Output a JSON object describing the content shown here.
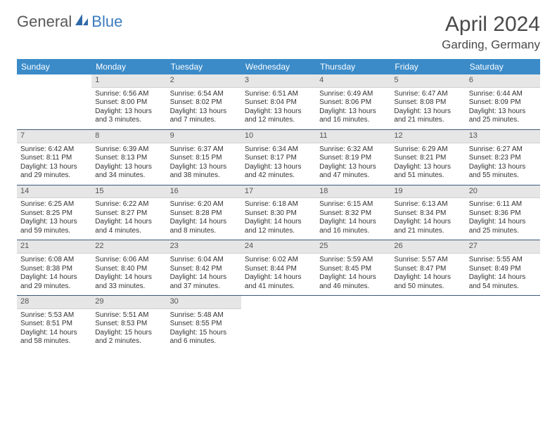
{
  "logo": {
    "text1": "General",
    "text2": "Blue"
  },
  "title": "April 2024",
  "location": "Garding, Germany",
  "colors": {
    "header_bg": "#3b8bc9",
    "header_fg": "#ffffff",
    "daynum_bg": "#e6e6e6",
    "row_border": "#3b5a7a",
    "logo_accent": "#3a7bbf"
  },
  "weekdays": [
    "Sunday",
    "Monday",
    "Tuesday",
    "Wednesday",
    "Thursday",
    "Friday",
    "Saturday"
  ],
  "weeks": [
    [
      {
        "n": "",
        "l1": "",
        "l2": "",
        "l3": "",
        "l4": "",
        "empty": true
      },
      {
        "n": "1",
        "l1": "Sunrise: 6:56 AM",
        "l2": "Sunset: 8:00 PM",
        "l3": "Daylight: 13 hours",
        "l4": "and 3 minutes."
      },
      {
        "n": "2",
        "l1": "Sunrise: 6:54 AM",
        "l2": "Sunset: 8:02 PM",
        "l3": "Daylight: 13 hours",
        "l4": "and 7 minutes."
      },
      {
        "n": "3",
        "l1": "Sunrise: 6:51 AM",
        "l2": "Sunset: 8:04 PM",
        "l3": "Daylight: 13 hours",
        "l4": "and 12 minutes."
      },
      {
        "n": "4",
        "l1": "Sunrise: 6:49 AM",
        "l2": "Sunset: 8:06 PM",
        "l3": "Daylight: 13 hours",
        "l4": "and 16 minutes."
      },
      {
        "n": "5",
        "l1": "Sunrise: 6:47 AM",
        "l2": "Sunset: 8:08 PM",
        "l3": "Daylight: 13 hours",
        "l4": "and 21 minutes."
      },
      {
        "n": "6",
        "l1": "Sunrise: 6:44 AM",
        "l2": "Sunset: 8:09 PM",
        "l3": "Daylight: 13 hours",
        "l4": "and 25 minutes."
      }
    ],
    [
      {
        "n": "7",
        "l1": "Sunrise: 6:42 AM",
        "l2": "Sunset: 8:11 PM",
        "l3": "Daylight: 13 hours",
        "l4": "and 29 minutes."
      },
      {
        "n": "8",
        "l1": "Sunrise: 6:39 AM",
        "l2": "Sunset: 8:13 PM",
        "l3": "Daylight: 13 hours",
        "l4": "and 34 minutes."
      },
      {
        "n": "9",
        "l1": "Sunrise: 6:37 AM",
        "l2": "Sunset: 8:15 PM",
        "l3": "Daylight: 13 hours",
        "l4": "and 38 minutes."
      },
      {
        "n": "10",
        "l1": "Sunrise: 6:34 AM",
        "l2": "Sunset: 8:17 PM",
        "l3": "Daylight: 13 hours",
        "l4": "and 42 minutes."
      },
      {
        "n": "11",
        "l1": "Sunrise: 6:32 AM",
        "l2": "Sunset: 8:19 PM",
        "l3": "Daylight: 13 hours",
        "l4": "and 47 minutes."
      },
      {
        "n": "12",
        "l1": "Sunrise: 6:29 AM",
        "l2": "Sunset: 8:21 PM",
        "l3": "Daylight: 13 hours",
        "l4": "and 51 minutes."
      },
      {
        "n": "13",
        "l1": "Sunrise: 6:27 AM",
        "l2": "Sunset: 8:23 PM",
        "l3": "Daylight: 13 hours",
        "l4": "and 55 minutes."
      }
    ],
    [
      {
        "n": "14",
        "l1": "Sunrise: 6:25 AM",
        "l2": "Sunset: 8:25 PM",
        "l3": "Daylight: 13 hours",
        "l4": "and 59 minutes."
      },
      {
        "n": "15",
        "l1": "Sunrise: 6:22 AM",
        "l2": "Sunset: 8:27 PM",
        "l3": "Daylight: 14 hours",
        "l4": "and 4 minutes."
      },
      {
        "n": "16",
        "l1": "Sunrise: 6:20 AM",
        "l2": "Sunset: 8:28 PM",
        "l3": "Daylight: 14 hours",
        "l4": "and 8 minutes."
      },
      {
        "n": "17",
        "l1": "Sunrise: 6:18 AM",
        "l2": "Sunset: 8:30 PM",
        "l3": "Daylight: 14 hours",
        "l4": "and 12 minutes."
      },
      {
        "n": "18",
        "l1": "Sunrise: 6:15 AM",
        "l2": "Sunset: 8:32 PM",
        "l3": "Daylight: 14 hours",
        "l4": "and 16 minutes."
      },
      {
        "n": "19",
        "l1": "Sunrise: 6:13 AM",
        "l2": "Sunset: 8:34 PM",
        "l3": "Daylight: 14 hours",
        "l4": "and 21 minutes."
      },
      {
        "n": "20",
        "l1": "Sunrise: 6:11 AM",
        "l2": "Sunset: 8:36 PM",
        "l3": "Daylight: 14 hours",
        "l4": "and 25 minutes."
      }
    ],
    [
      {
        "n": "21",
        "l1": "Sunrise: 6:08 AM",
        "l2": "Sunset: 8:38 PM",
        "l3": "Daylight: 14 hours",
        "l4": "and 29 minutes."
      },
      {
        "n": "22",
        "l1": "Sunrise: 6:06 AM",
        "l2": "Sunset: 8:40 PM",
        "l3": "Daylight: 14 hours",
        "l4": "and 33 minutes."
      },
      {
        "n": "23",
        "l1": "Sunrise: 6:04 AM",
        "l2": "Sunset: 8:42 PM",
        "l3": "Daylight: 14 hours",
        "l4": "and 37 minutes."
      },
      {
        "n": "24",
        "l1": "Sunrise: 6:02 AM",
        "l2": "Sunset: 8:44 PM",
        "l3": "Daylight: 14 hours",
        "l4": "and 41 minutes."
      },
      {
        "n": "25",
        "l1": "Sunrise: 5:59 AM",
        "l2": "Sunset: 8:45 PM",
        "l3": "Daylight: 14 hours",
        "l4": "and 46 minutes."
      },
      {
        "n": "26",
        "l1": "Sunrise: 5:57 AM",
        "l2": "Sunset: 8:47 PM",
        "l3": "Daylight: 14 hours",
        "l4": "and 50 minutes."
      },
      {
        "n": "27",
        "l1": "Sunrise: 5:55 AM",
        "l2": "Sunset: 8:49 PM",
        "l3": "Daylight: 14 hours",
        "l4": "and 54 minutes."
      }
    ],
    [
      {
        "n": "28",
        "l1": "Sunrise: 5:53 AM",
        "l2": "Sunset: 8:51 PM",
        "l3": "Daylight: 14 hours",
        "l4": "and 58 minutes."
      },
      {
        "n": "29",
        "l1": "Sunrise: 5:51 AM",
        "l2": "Sunset: 8:53 PM",
        "l3": "Daylight: 15 hours",
        "l4": "and 2 minutes."
      },
      {
        "n": "30",
        "l1": "Sunrise: 5:48 AM",
        "l2": "Sunset: 8:55 PM",
        "l3": "Daylight: 15 hours",
        "l4": "and 6 minutes."
      },
      {
        "n": "",
        "l1": "",
        "l2": "",
        "l3": "",
        "l4": "",
        "empty": true
      },
      {
        "n": "",
        "l1": "",
        "l2": "",
        "l3": "",
        "l4": "",
        "empty": true
      },
      {
        "n": "",
        "l1": "",
        "l2": "",
        "l3": "",
        "l4": "",
        "empty": true
      },
      {
        "n": "",
        "l1": "",
        "l2": "",
        "l3": "",
        "l4": "",
        "empty": true
      }
    ]
  ]
}
